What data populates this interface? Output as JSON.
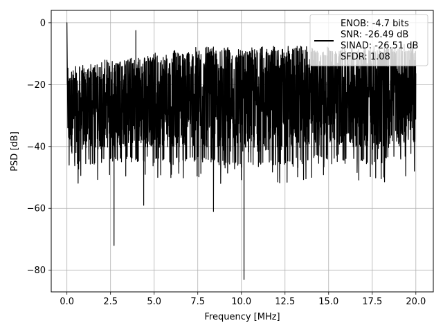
{
  "chart_data": {
    "type": "line",
    "xlabel": "Frequency [MHz]",
    "ylabel": "PSD [dB]",
    "xlim": [
      -0.9,
      21.0
    ],
    "ylim": [
      -87,
      4
    ],
    "xticks": [
      0.0,
      2.5,
      5.0,
      7.5,
      10.0,
      12.5,
      15.0,
      17.5,
      20.0
    ],
    "xtick_labels": [
      "0.0",
      "2.5",
      "5.0",
      "7.5",
      "10.0",
      "12.5",
      "15.0",
      "17.5",
      "20.0"
    ],
    "yticks": [
      0,
      -20,
      -40,
      -60,
      -80
    ],
    "ytick_labels": [
      "0",
      "−20",
      "−40",
      "−60",
      "−80"
    ],
    "grid": true,
    "legend_position": "top-right",
    "series": [
      {
        "color": "#000000",
        "notable_points": [
          {
            "x": 0.0,
            "y": 0.0
          },
          {
            "x": 2.7,
            "y": -72
          },
          {
            "x": 3.95,
            "y": -2.5
          },
          {
            "x": 4.4,
            "y": -59
          },
          {
            "x": 8.4,
            "y": -61
          },
          {
            "x": 10.15,
            "y": -83
          }
        ],
        "upper_envelope": [
          {
            "x": 0.1,
            "y": -16
          },
          {
            "x": 2.5,
            "y": -13
          },
          {
            "x": 5.0,
            "y": -11
          },
          {
            "x": 7.5,
            "y": -9
          },
          {
            "x": 10.0,
            "y": -9
          },
          {
            "x": 12.5,
            "y": -8.5
          },
          {
            "x": 15.0,
            "y": -9
          },
          {
            "x": 17.5,
            "y": -8.5
          },
          {
            "x": 20.0,
            "y": -8
          }
        ],
        "lower_envelope": [
          {
            "x": 0.1,
            "y": -47
          },
          {
            "x": 2.5,
            "y": -45
          },
          {
            "x": 5.0,
            "y": -45
          },
          {
            "x": 7.5,
            "y": -45
          },
          {
            "x": 10.0,
            "y": -47
          },
          {
            "x": 12.5,
            "y": -46
          },
          {
            "x": 15.0,
            "y": -44
          },
          {
            "x": 17.5,
            "y": -46
          },
          {
            "x": 20.0,
            "y": -44
          }
        ]
      }
    ],
    "legend": {
      "lines": [
        "ENOB: -4.7 bits",
        "SNR: -26.49 dB",
        "SINAD: -26.51 dB",
        "SFDR: 1.08"
      ]
    }
  }
}
